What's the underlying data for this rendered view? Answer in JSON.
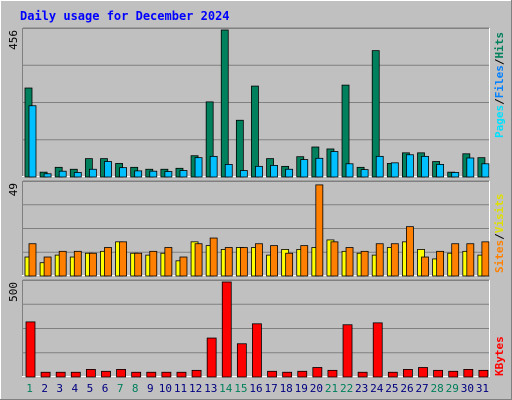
{
  "title": "Daily usage for December 2024",
  "legend": {
    "pages": "Pages",
    "files": "Files",
    "hits": "Hits",
    "sites": "Sites",
    "visits": "Visits",
    "kbytes": "KBytes",
    "sep": "/"
  },
  "colors": {
    "hits": "#00805C",
    "files": "#00C0FF",
    "pages": "#00E0FF",
    "visits": "#FFFF00",
    "sites": "#FF8000",
    "kbytes": "#FF0000",
    "title": "#0000FF",
    "weekend": "#00805C",
    "weekday": "#000080",
    "panel": "#C0C0C0"
  },
  "chart_data": [
    {
      "type": "bar",
      "name": "hits-files-pages",
      "ymax_label": "456",
      "ylim": [
        0,
        456
      ],
      "categories": [
        "1",
        "2",
        "3",
        "4",
        "5",
        "6",
        "7",
        "8",
        "9",
        "10",
        "11",
        "12",
        "13",
        "14",
        "15",
        "16",
        "17",
        "18",
        "19",
        "20",
        "21",
        "22",
        "23",
        "24",
        "25",
        "26",
        "27",
        "28",
        "29",
        "30",
        "31"
      ],
      "series": [
        {
          "name": "Hits",
          "values": [
            276,
            15,
            30,
            24,
            57,
            57,
            42,
            30,
            24,
            24,
            27,
            66,
            233,
            456,
            176,
            282,
            57,
            33,
            63,
            93,
            87,
            285,
            30,
            392,
            42,
            75,
            75,
            48,
            15,
            72,
            60
          ]
        },
        {
          "name": "Files",
          "values": [
            221,
            10,
            18,
            14,
            24,
            48,
            29,
            19,
            18,
            17,
            20,
            60,
            64,
            39,
            20,
            33,
            36,
            24,
            54,
            58,
            79,
            41,
            23,
            64,
            44,
            69,
            64,
            39,
            14,
            59,
            41
          ]
        }
      ]
    },
    {
      "type": "bar",
      "name": "visits-sites",
      "ymax_label": "49",
      "ylim": [
        0,
        49
      ],
      "series": [
        {
          "name": "Visits",
          "values": [
            10,
            7,
            11,
            10,
            12,
            13,
            18,
            12,
            11,
            12,
            8,
            18,
            16,
            14,
            15,
            15,
            11,
            14,
            14,
            15,
            19,
            13,
            12,
            11,
            15,
            18,
            14,
            9,
            12,
            13,
            11
          ]
        },
        {
          "name": "Sites",
          "values": [
            17,
            10,
            13,
            13,
            12,
            15,
            18,
            12,
            13,
            15,
            10,
            17,
            20,
            15,
            15,
            17,
            16,
            12,
            16,
            48,
            18,
            15,
            13,
            17,
            17,
            26,
            10,
            13,
            17,
            17,
            18
          ]
        }
      ]
    },
    {
      "type": "bar",
      "name": "kbytes",
      "ymax_label": "500",
      "ylim": [
        0,
        500
      ],
      "series": [
        {
          "name": "KBytes",
          "values": [
            290,
            25,
            25,
            25,
            40,
            30,
            40,
            25,
            25,
            25,
            25,
            35,
            205,
            500,
            175,
            280,
            30,
            25,
            30,
            50,
            35,
            275,
            25,
            285,
            25,
            40,
            50,
            35,
            30,
            40,
            35
          ]
        }
      ]
    }
  ]
}
